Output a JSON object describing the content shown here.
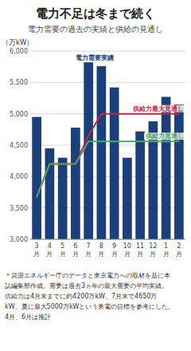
{
  "chart_data": {
    "type": "bar",
    "title": "電力不足は冬まで続く",
    "subtitle": "電力需要の過去の実績と供給の見通し",
    "y_label": "（万kW）",
    "footnote": "＊資源エネルギー庁のデータと東京電力への取材を基に本\n誌編集部作成。需要は過去3ヵ年の最大需要の平均実績。\n供給力は4月末までに約4200万kW、7月末で4650万\nkW、夏に最大5000万kWという東電の目標を参考にした。\n4月、6月は推計",
    "categories": [
      "3\n月",
      "4\n月",
      "5\n月",
      "6\n月",
      "7\n月",
      "8\n月",
      "9\n月",
      "10\n月",
      "11\n月",
      "12\n月",
      "1\n月",
      "2\n月"
    ],
    "series": [
      {
        "name": "電力需要実績",
        "type": "bar",
        "color": "#1a3f7a",
        "values": [
          4950,
          4450,
          4300,
          4780,
          5820,
          5760,
          5420,
          4300,
          4720,
          4880,
          5270,
          5150
        ]
      },
      {
        "name": "供給力最大見通し",
        "type": "line",
        "color": "#cc2244",
        "values": [
          3680,
          4200,
          4200,
          4200,
          4650,
          5000,
          5000,
          5000,
          5000,
          5000,
          5000,
          5000
        ]
      },
      {
        "name": "供給力見通し",
        "type": "line",
        "color": "#44aa66",
        "values": [
          3680,
          4200,
          4200,
          4200,
          4560,
          4560,
          4560,
          4560,
          4560,
          4560,
          4560,
          4560
        ]
      }
    ],
    "ylim": [
      3000,
      6000
    ],
    "yticks": [
      {
        "value": 3000,
        "label": "3,000"
      },
      {
        "value": 3500,
        "label": "3,500"
      },
      {
        "value": 4000,
        "label": "4,000"
      },
      {
        "value": 4500,
        "label": "4,500"
      },
      {
        "value": 5000,
        "label": "5,000"
      },
      {
        "value": 5500,
        "label": "5,500"
      },
      {
        "value": 6000,
        "label": "6,000"
      }
    ],
    "grid": true
  }
}
